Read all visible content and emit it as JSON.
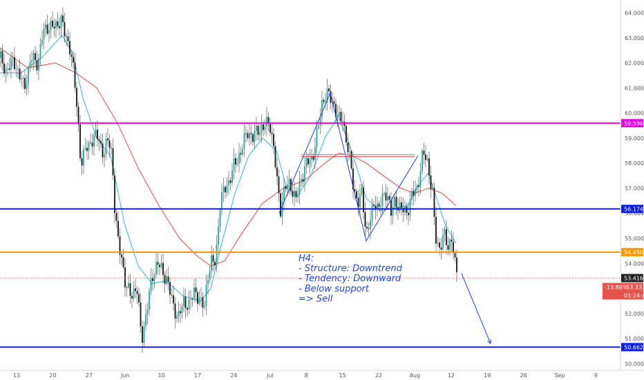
{
  "chart_data": {
    "type": "candlestick",
    "y_axis": {
      "position": "right",
      "ylim": [
        49.9,
        64.4
      ],
      "ticks": [
        "50.000",
        "51.000",
        "52.000",
        "53.000",
        "54.000",
        "55.000",
        "56.000",
        "57.000",
        "58.000",
        "59.000",
        "60.000",
        "61.000",
        "62.000",
        "63.000",
        "64.000"
      ]
    },
    "x_axis": {
      "ticks": [
        "13",
        "20",
        "27",
        "Jun",
        "10",
        "17",
        "24",
        "Jul",
        "8",
        "15",
        "22",
        "Aug",
        "12",
        "19",
        "26",
        "Sep",
        "9"
      ]
    },
    "grid": false,
    "colors": {
      "up": "#26a69a",
      "down": "#111111",
      "sma_fast": "#2bb6d0",
      "sma_slow": "#e04a40"
    },
    "levels": [
      {
        "name": "resistance",
        "value": 59.596,
        "label": "59.596",
        "color": "#e600e6"
      },
      {
        "name": "support-1",
        "value": 56.174,
        "label": "56.174",
        "color": "#0a1ee8"
      },
      {
        "name": "support-2",
        "value": 54.45,
        "label": "54.450",
        "color": "#ff9800"
      },
      {
        "name": "support-3",
        "value": 50.662,
        "label": "50.662",
        "color": "#0a1ee8"
      }
    ],
    "current": {
      "price": "53.416",
      "change": "-13.88%",
      "price2": "53.332",
      "countdown": "01:24:47"
    },
    "annotation": {
      "lines": [
        "H4:",
        "- Structure: Downtrend",
        "- Tendency: Downward",
        "- Below support",
        "=> Sell"
      ]
    },
    "price_path": [
      [
        0,
        62.2
      ],
      [
        8,
        61.7
      ],
      [
        20,
        62.1
      ],
      [
        35,
        61.0
      ],
      [
        45,
        62.2
      ],
      [
        55,
        62.0
      ],
      [
        62,
        63.2
      ],
      [
        70,
        63.5
      ],
      [
        80,
        63.4
      ],
      [
        88,
        63.8
      ],
      [
        95,
        63.0
      ],
      [
        102,
        62.6
      ],
      [
        107,
        61.5
      ],
      [
        112,
        60.0
      ],
      [
        117,
        58.0
      ],
      [
        125,
        58.6
      ],
      [
        135,
        59.0
      ],
      [
        142,
        59.1
      ],
      [
        150,
        58.3
      ],
      [
        157,
        59.0
      ],
      [
        162,
        58.4
      ],
      [
        166,
        56.2
      ],
      [
        170,
        55.0
      ],
      [
        176,
        54.3
      ],
      [
        182,
        53.0
      ],
      [
        190,
        52.8
      ],
      [
        198,
        53.0
      ],
      [
        205,
        51.0
      ],
      [
        212,
        52.0
      ],
      [
        220,
        53.5
      ],
      [
        228,
        54.0
      ],
      [
        235,
        53.7
      ],
      [
        242,
        53.3
      ],
      [
        250,
        52.4
      ],
      [
        258,
        51.8
      ],
      [
        266,
        52.5
      ],
      [
        274,
        52.3
      ],
      [
        282,
        53.0
      ],
      [
        290,
        52.4
      ],
      [
        296,
        52.3
      ],
      [
        300,
        53.5
      ],
      [
        306,
        54.0
      ],
      [
        312,
        54.1
      ],
      [
        318,
        56.3
      ],
      [
        325,
        57.0
      ],
      [
        332,
        57.3
      ],
      [
        340,
        58.0
      ],
      [
        348,
        58.4
      ],
      [
        358,
        59.3
      ],
      [
        366,
        59.0
      ],
      [
        374,
        59.4
      ],
      [
        382,
        59.4
      ],
      [
        390,
        59.7
      ],
      [
        396,
        58.6
      ],
      [
        402,
        57.0
      ],
      [
        406,
        56.2
      ],
      [
        412,
        57.0
      ],
      [
        420,
        57.2
      ],
      [
        428,
        56.5
      ],
      [
        436,
        57.4
      ],
      [
        444,
        58.0
      ],
      [
        452,
        58.2
      ],
      [
        460,
        59.3
      ],
      [
        466,
        60.4
      ],
      [
        472,
        60.8
      ],
      [
        478,
        60.6
      ],
      [
        484,
        60.3
      ],
      [
        490,
        59.7
      ],
      [
        496,
        59.8
      ],
      [
        502,
        58.8
      ],
      [
        507,
        58.0
      ],
      [
        512,
        57.0
      ],
      [
        518,
        56.4
      ],
      [
        524,
        56.8
      ],
      [
        530,
        55.2
      ],
      [
        536,
        55.7
      ],
      [
        542,
        56.5
      ],
      [
        548,
        56.2
      ],
      [
        554,
        56.6
      ],
      [
        560,
        56.9
      ],
      [
        566,
        56.0
      ],
      [
        572,
        56.5
      ],
      [
        580,
        56.2
      ],
      [
        588,
        56.0
      ],
      [
        596,
        56.7
      ],
      [
        604,
        57.0
      ],
      [
        612,
        58.4
      ],
      [
        618,
        58.1
      ],
      [
        622,
        57.5
      ],
      [
        626,
        56.8
      ],
      [
        630,
        55.0
      ],
      [
        636,
        54.6
      ],
      [
        642,
        55.2
      ],
      [
        648,
        54.6
      ],
      [
        654,
        55.1
      ],
      [
        658,
        54.0
      ],
      [
        662,
        53.4
      ]
    ],
    "sma_fast_path": [
      [
        0,
        61.6
      ],
      [
        30,
        61.6
      ],
      [
        60,
        62.2
      ],
      [
        90,
        63.1
      ],
      [
        105,
        62.4
      ],
      [
        120,
        60.6
      ],
      [
        140,
        59.0
      ],
      [
        160,
        58.3
      ],
      [
        180,
        55.6
      ],
      [
        200,
        53.9
      ],
      [
        220,
        53.2
      ],
      [
        240,
        53.3
      ],
      [
        265,
        52.7
      ],
      [
        290,
        52.5
      ],
      [
        305,
        53.0
      ],
      [
        320,
        54.7
      ],
      [
        340,
        56.8
      ],
      [
        360,
        58.3
      ],
      [
        380,
        59.0
      ],
      [
        400,
        58.5
      ],
      [
        415,
        57.0
      ],
      [
        430,
        56.7
      ],
      [
        450,
        57.5
      ],
      [
        470,
        59.0
      ],
      [
        490,
        59.9
      ],
      [
        510,
        58.4
      ],
      [
        530,
        56.6
      ],
      [
        550,
        56.1
      ],
      [
        570,
        56.2
      ],
      [
        590,
        56.3
      ],
      [
        605,
        57.1
      ],
      [
        620,
        57.6
      ],
      [
        632,
        56.6
      ],
      [
        645,
        55.5
      ],
      [
        660,
        54.8
      ]
    ],
    "sma_slow_path": [
      [
        0,
        62.6
      ],
      [
        40,
        61.8
      ],
      [
        80,
        62.0
      ],
      [
        110,
        61.6
      ],
      [
        140,
        61.0
      ],
      [
        170,
        59.6
      ],
      [
        200,
        57.8
      ],
      [
        230,
        56.3
      ],
      [
        260,
        55.0
      ],
      [
        285,
        54.3
      ],
      [
        305,
        53.9
      ],
      [
        325,
        54.1
      ],
      [
        350,
        55.2
      ],
      [
        380,
        56.4
      ],
      [
        410,
        57.0
      ],
      [
        440,
        57.3
      ],
      [
        470,
        58.0
      ],
      [
        490,
        58.4
      ],
      [
        510,
        58.3
      ],
      [
        530,
        58.0
      ],
      [
        555,
        57.5
      ],
      [
        580,
        57.0
      ],
      [
        600,
        56.8
      ],
      [
        620,
        57.0
      ],
      [
        640,
        56.8
      ],
      [
        660,
        56.3
      ]
    ],
    "patterns": {
      "swing_line": [
        [
          404,
          56.0
        ],
        [
          478,
          60.8
        ],
        [
          530,
          54.9
        ],
        [
          605,
          58.3
        ]
      ],
      "neckline": [
        [
          436,
          58.3
        ],
        [
          600,
          58.3
        ]
      ],
      "projection_arrow": [
        [
          668,
          53.6
        ],
        [
          710,
          50.8
        ]
      ]
    }
  }
}
